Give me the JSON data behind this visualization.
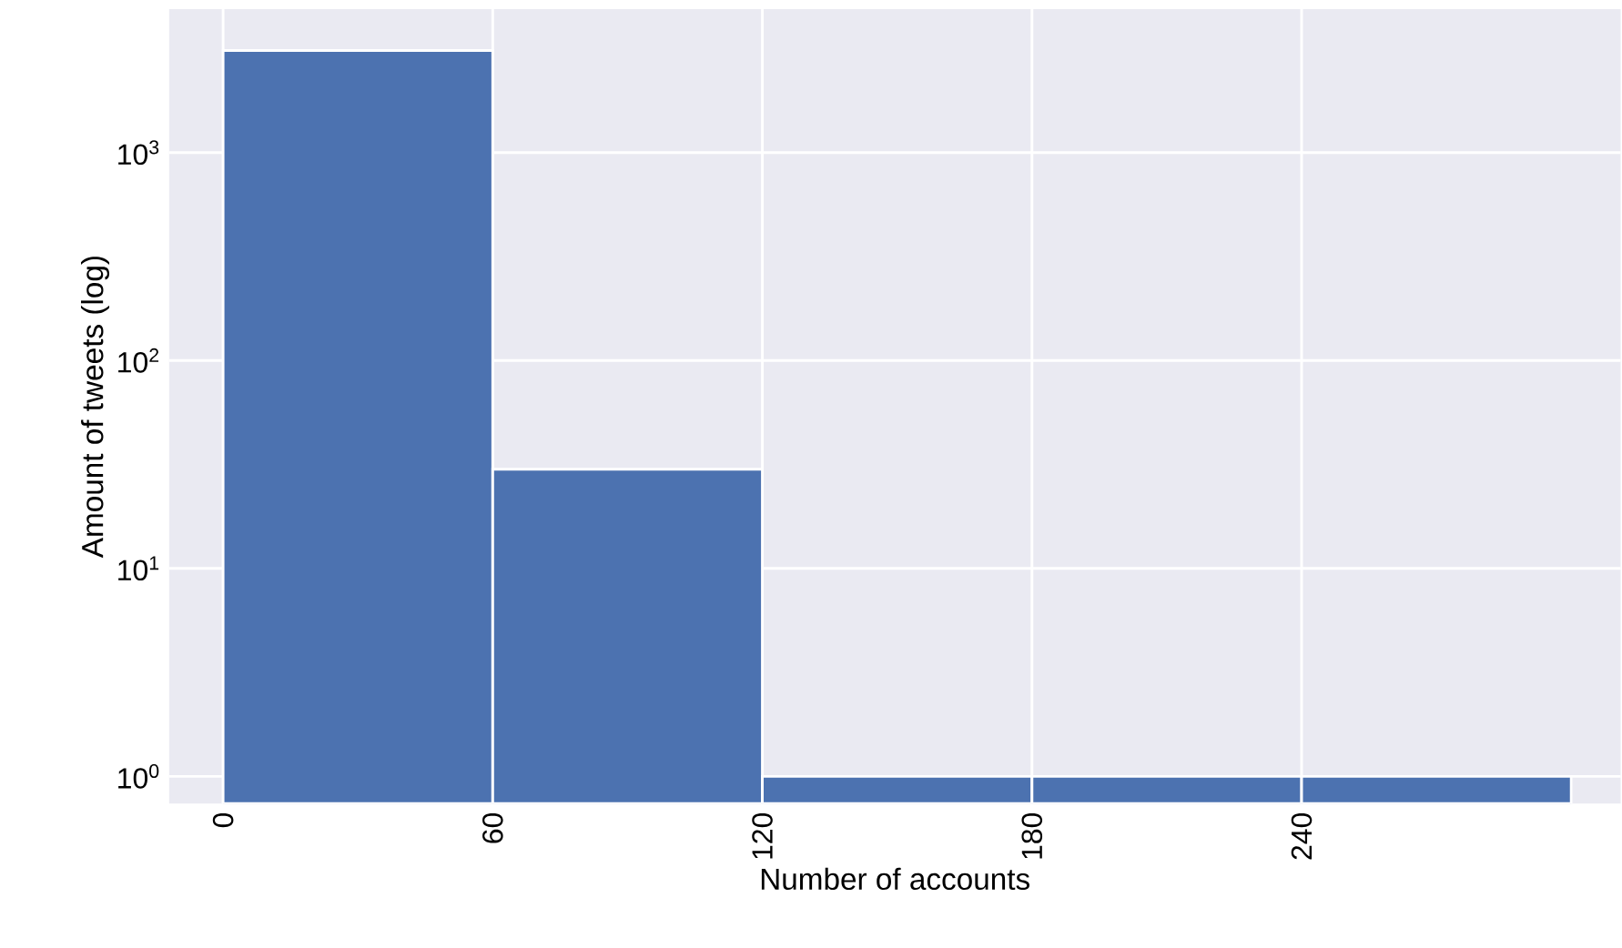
{
  "chart_data": {
    "type": "histogram",
    "xlabel": "Number of accounts",
    "ylabel": "Amount of tweets (log)",
    "bins": [
      0,
      60,
      120,
      180,
      240,
      300
    ],
    "values": [
      3100,
      30,
      1,
      1,
      1
    ],
    "color": "#4c72b0",
    "xlim": [
      -12,
      311
    ],
    "ylim": [
      0.74,
      4900
    ],
    "xticks": [
      0,
      60,
      120,
      180,
      240
    ],
    "yticks": [
      {
        "value": 1,
        "label": "10$^{0}$"
      },
      {
        "value": 10,
        "label": "10$^{1}$"
      },
      {
        "value": 100,
        "label": "10$^{2}$"
      },
      {
        "value": 1000,
        "label": "10$^{3}$"
      }
    ],
    "log": "y",
    "grid": true
  }
}
